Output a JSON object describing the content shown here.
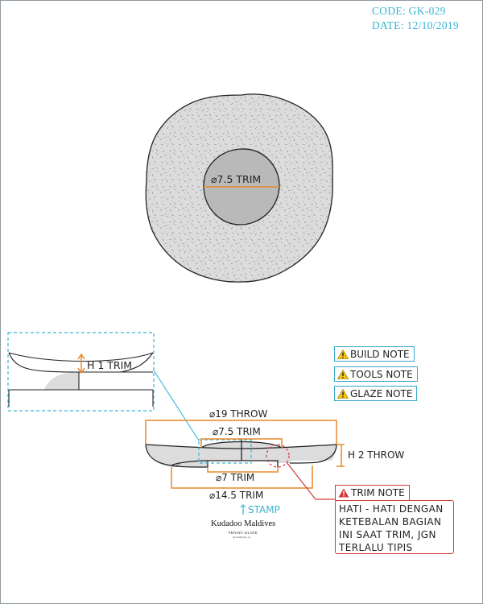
{
  "header": {
    "code": "CODE: GK-029",
    "date": "DATE: 12/10/2019"
  },
  "top_view": {
    "diameter_label": "⌀7.5 TRIM"
  },
  "detail_view": {
    "height_label": "H 1 TRIM"
  },
  "notes": {
    "build": "BUILD NOTE",
    "tools": "TOOLS NOTE",
    "glaze": "GLAZE NOTE",
    "trim_title": "TRIM NOTE",
    "trim_lines": [
      "HATI - HATI DENGAN",
      "KETEBALAN BAGIAN",
      "INI SAAT TRIM, JGN",
      "TERLALU TIPIS"
    ]
  },
  "dimensions": {
    "throw_diameter": "⌀19 THROW",
    "trim_diameter_top": "⌀7.5 TRIM",
    "height_throw": "H 2 THROW",
    "foot_trim": "⌀7 TRIM",
    "outer_trim": "⌀14.5 TRIM"
  },
  "stamp": {
    "label": "STAMP",
    "logo_name": "Kudadoo Maldives",
    "logo_sub": "PRIVATE ISLAND",
    "logo_small": "by rushvvee_co"
  },
  "colors": {
    "accent": "#37b4d4",
    "dimension": "#e8892a",
    "alert": "#d23a3a",
    "body_fill": "#dcdcdc",
    "hole_fill": "#b9b9b9"
  },
  "icons": [
    "warning-icon",
    "arrow-up-icon"
  ]
}
